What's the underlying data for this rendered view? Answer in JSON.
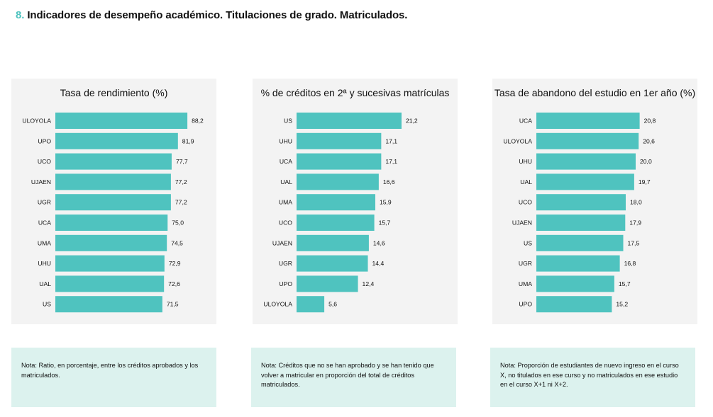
{
  "heading": {
    "number": "8.",
    "title": "Indicadores de desempeño académico. Titulaciones de grado. Matriculados."
  },
  "colors": {
    "bar": "#4fc3bf",
    "accent": "#4fc3bf"
  },
  "chart_data": [
    {
      "type": "bar",
      "orientation": "horizontal",
      "title": "Tasa de rendimiento (%)",
      "categories": [
        "ULOYOLA",
        "UPO",
        "UCO",
        "UJAEN",
        "UGR",
        "UCA",
        "UMA",
        "UHU",
        "UAL",
        "US"
      ],
      "values": [
        88.2,
        81.9,
        77.7,
        77.2,
        77.2,
        75.0,
        74.5,
        72.9,
        72.6,
        71.5
      ],
      "labels": [
        "88,2",
        "81,9",
        "77,7",
        "77,2",
        "77,2",
        "75,0",
        "74,5",
        "72,9",
        "72,6",
        "71,5"
      ],
      "note": "Nota: Ratio, en porcentaje, entre los créditos aprobados y los matriculados."
    },
    {
      "type": "bar",
      "orientation": "horizontal",
      "title": "% de créditos en 2ª y sucesivas matrículas",
      "categories": [
        "US",
        "UHU",
        "UCA",
        "UAL",
        "UMA",
        "UCO",
        "UJAEN",
        "UGR",
        "UPO",
        "ULOYOLA"
      ],
      "values": [
        21.2,
        17.1,
        17.1,
        16.6,
        15.9,
        15.7,
        14.6,
        14.4,
        12.4,
        5.6
      ],
      "labels": [
        "21,2",
        "17,1",
        "17,1",
        "16,6",
        "15,9",
        "15,7",
        "14,6",
        "14,4",
        "12,4",
        "5,6"
      ],
      "note": "Nota: Créditos que no se han aprobado y se han tenido que volver a matricular en proporción del total de créditos matriculados."
    },
    {
      "type": "bar",
      "orientation": "horizontal",
      "title": "Tasa de abandono del estudio en 1er año (%)",
      "categories": [
        "UCA",
        "ULOYOLA",
        "UHU",
        "UAL",
        "UCO",
        "UJAEN",
        "US",
        "UGR",
        "UMA",
        "UPO"
      ],
      "values": [
        20.8,
        20.6,
        20.0,
        19.7,
        18.0,
        17.9,
        17.5,
        16.8,
        15.7,
        15.2
      ],
      "labels": [
        "20,8",
        "20,6",
        "20,0",
        "19,7",
        "18,0",
        "17,9",
        "17,5",
        "16,8",
        "15,7",
        "15,2"
      ],
      "note": "Nota: Proporción de estudiantes de nuevo ingreso en el curso X, no titulados en ese curso y no matriculados en ese estudio en el curso X+1 ni X+2."
    }
  ]
}
